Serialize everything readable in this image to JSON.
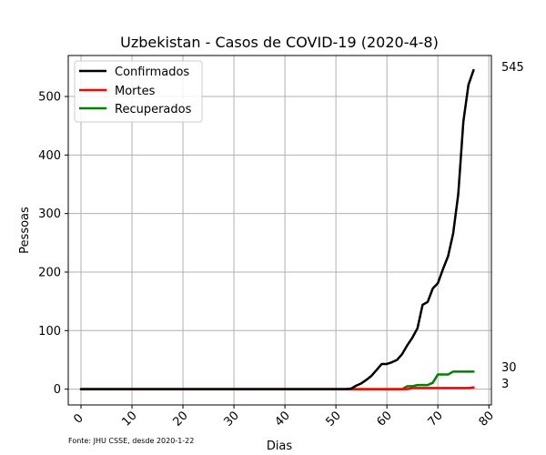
{
  "chart_data": {
    "type": "line",
    "title": "Uzbekistan - Casos de COVID-19 (2020-4-8)",
    "xlabel": "Dias",
    "ylabel": "Pessoas",
    "source": "Fonte: JHU CSSE, desde 2020-1-22",
    "xlim": [
      -2.5,
      80.5
    ],
    "ylim": [
      -27,
      570
    ],
    "xticks": [
      0,
      10,
      20,
      30,
      40,
      50,
      60,
      70,
      80
    ],
    "yticks": [
      0,
      100,
      200,
      300,
      400,
      500
    ],
    "grid": true,
    "legend_position": "top-left",
    "end_labels": [
      "545",
      "30",
      "3"
    ],
    "series": [
      {
        "name": "Confirmados",
        "color": "#000000",
        "x": [
          0,
          1,
          2,
          3,
          4,
          5,
          6,
          7,
          8,
          9,
          10,
          11,
          12,
          13,
          14,
          15,
          16,
          17,
          18,
          19,
          20,
          21,
          22,
          23,
          24,
          25,
          26,
          27,
          28,
          29,
          30,
          31,
          32,
          33,
          34,
          35,
          36,
          37,
          38,
          39,
          40,
          41,
          42,
          43,
          44,
          45,
          46,
          47,
          48,
          49,
          50,
          51,
          52,
          53,
          54,
          55,
          56,
          57,
          58,
          59,
          60,
          61,
          62,
          63,
          64,
          65,
          66,
          67,
          68,
          69,
          70,
          71,
          72,
          73,
          74,
          75,
          76,
          77
        ],
        "values": [
          0,
          0,
          0,
          0,
          0,
          0,
          0,
          0,
          0,
          0,
          0,
          0,
          0,
          0,
          0,
          0,
          0,
          0,
          0,
          0,
          0,
          0,
          0,
          0,
          0,
          0,
          0,
          0,
          0,
          0,
          0,
          0,
          0,
          0,
          0,
          0,
          0,
          0,
          0,
          0,
          0,
          0,
          0,
          0,
          0,
          0,
          0,
          0,
          0,
          0,
          0,
          0,
          0,
          1,
          6,
          10,
          16,
          23,
          33,
          43,
          43,
          46,
          50,
          60,
          75,
          88,
          104,
          144,
          149,
          172,
          181,
          205,
          227,
          266,
          333,
          457,
          520,
          545
        ]
      },
      {
        "name": "Mortes",
        "color": "#ff0000",
        "x": [
          0,
          1,
          2,
          3,
          4,
          5,
          6,
          7,
          8,
          9,
          10,
          11,
          12,
          13,
          14,
          15,
          16,
          17,
          18,
          19,
          20,
          21,
          22,
          23,
          24,
          25,
          26,
          27,
          28,
          29,
          30,
          31,
          32,
          33,
          34,
          35,
          36,
          37,
          38,
          39,
          40,
          41,
          42,
          43,
          44,
          45,
          46,
          47,
          48,
          49,
          50,
          51,
          52,
          53,
          54,
          55,
          56,
          57,
          58,
          59,
          60,
          61,
          62,
          63,
          64,
          65,
          66,
          67,
          68,
          69,
          70,
          71,
          72,
          73,
          74,
          75,
          76,
          77
        ],
        "values": [
          0,
          0,
          0,
          0,
          0,
          0,
          0,
          0,
          0,
          0,
          0,
          0,
          0,
          0,
          0,
          0,
          0,
          0,
          0,
          0,
          0,
          0,
          0,
          0,
          0,
          0,
          0,
          0,
          0,
          0,
          0,
          0,
          0,
          0,
          0,
          0,
          0,
          0,
          0,
          0,
          0,
          0,
          0,
          0,
          0,
          0,
          0,
          0,
          0,
          0,
          0,
          0,
          0,
          0,
          0,
          0,
          0,
          0,
          0,
          0,
          0,
          0,
          0,
          0,
          0,
          2,
          2,
          2,
          2,
          2,
          2,
          2,
          2,
          2,
          2,
          2,
          2,
          3
        ]
      },
      {
        "name": "Recuperados",
        "color": "#008000",
        "x": [
          0,
          1,
          2,
          3,
          4,
          5,
          6,
          7,
          8,
          9,
          10,
          11,
          12,
          13,
          14,
          15,
          16,
          17,
          18,
          19,
          20,
          21,
          22,
          23,
          24,
          25,
          26,
          27,
          28,
          29,
          30,
          31,
          32,
          33,
          34,
          35,
          36,
          37,
          38,
          39,
          40,
          41,
          42,
          43,
          44,
          45,
          46,
          47,
          48,
          49,
          50,
          51,
          52,
          53,
          54,
          55,
          56,
          57,
          58,
          59,
          60,
          61,
          62,
          63,
          64,
          65,
          66,
          67,
          68,
          69,
          70,
          71,
          72,
          73,
          74,
          75,
          76,
          77
        ],
        "values": [
          0,
          0,
          0,
          0,
          0,
          0,
          0,
          0,
          0,
          0,
          0,
          0,
          0,
          0,
          0,
          0,
          0,
          0,
          0,
          0,
          0,
          0,
          0,
          0,
          0,
          0,
          0,
          0,
          0,
          0,
          0,
          0,
          0,
          0,
          0,
          0,
          0,
          0,
          0,
          0,
          0,
          0,
          0,
          0,
          0,
          0,
          0,
          0,
          0,
          0,
          0,
          0,
          0,
          0,
          0,
          0,
          0,
          0,
          0,
          0,
          0,
          0,
          0,
          0,
          5,
          5,
          7,
          7,
          7,
          11,
          25,
          25,
          25,
          30,
          30,
          30,
          30,
          30
        ]
      }
    ]
  }
}
